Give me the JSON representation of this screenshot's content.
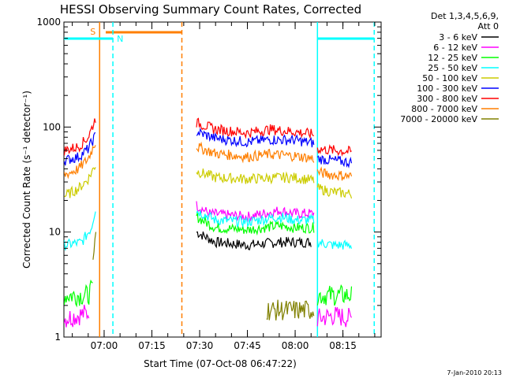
{
  "chart_data": {
    "type": "line",
    "title": "HESSI Observing Summary Count Rates, Corrected",
    "ylabel": "Corrected Count Rate (s⁻¹ detector⁻¹)",
    "xlabel": "Start Time (07-Oct-08 06:47:22)",
    "yscale": "log",
    "ylim": [
      1,
      1000
    ],
    "xlim": [
      "06:47:22",
      "08:27:00"
    ],
    "yticks": [
      "1",
      "10",
      "100",
      "1000"
    ],
    "xticks": [
      {
        "label": "07:00",
        "t": "07:00"
      },
      {
        "label": "07:15",
        "t": "07:15"
      },
      {
        "label": "07:30",
        "t": "07:30"
      },
      {
        "label": "07:45",
        "t": "07:45"
      },
      {
        "label": "08:00",
        "t": "08:00"
      },
      {
        "label": "08:15",
        "t": "08:15"
      }
    ],
    "legend_header": [
      "Det 1,3,4,5,6,9,",
      "Att 0"
    ],
    "legend_placement": "right",
    "series": [
      {
        "name": "3 - 6 keV",
        "color": "#000000",
        "segments": [
          {
            "t": [
              "07:29",
              "07:35",
              "07:45",
              "07:55",
              "08:05"
            ],
            "y": [
              10,
              8,
              7.5,
              8,
              8
            ]
          }
        ]
      },
      {
        "name": "6 - 12 keV",
        "color": "#ff00ff",
        "segments": [
          {
            "t": [
              "06:47:30",
              "06:55",
              "06:55:30"
            ],
            "y": [
              1.5,
              1.7,
              2
            ]
          },
          {
            "t": [
              "07:29",
              "07:33",
              "07:45",
              "07:55",
              "08:00",
              "08:06"
            ],
            "y": [
              18,
              15,
              14,
              16,
              15,
              15
            ]
          },
          {
            "t": [
              "08:07",
              "08:12",
              "08:18"
            ],
            "y": [
              1.5,
              1.6,
              1.5
            ]
          }
        ]
      },
      {
        "name": "12 - 25 keV",
        "color": "#00ff00",
        "segments": [
          {
            "t": [
              "06:47:30",
              "06:55",
              "06:56:40"
            ],
            "y": [
              2.5,
              2.5,
              3
            ]
          },
          {
            "t": [
              "07:29",
              "07:35",
              "07:45",
              "07:55",
              "08:00",
              "08:06"
            ],
            "y": [
              14,
              11,
              10.5,
              11.5,
              11,
              11
            ]
          },
          {
            "t": [
              "08:07",
              "08:12",
              "08:18"
            ],
            "y": [
              2.5,
              2.5,
              2.5
            ]
          }
        ]
      },
      {
        "name": "25 - 50 keV",
        "color": "#00ffff",
        "segments": [
          {
            "t": [
              "06:47:30",
              "06:53",
              "06:56",
              "06:57:30"
            ],
            "y": [
              7.5,
              8,
              11,
              18
            ]
          },
          {
            "t": [
              "07:29",
              "07:35",
              "07:45",
              "07:55",
              "08:00",
              "08:06"
            ],
            "y": [
              16,
              13,
              12.5,
              14,
              13,
              13
            ]
          },
          {
            "t": [
              "08:07",
              "08:12",
              "08:18"
            ],
            "y": [
              8,
              7.5,
              7.5
            ]
          }
        ]
      },
      {
        "name": "50 - 100 keV",
        "color": "#cccc00",
        "segments": [
          {
            "t": [
              "06:47:30",
              "06:52",
              "06:55",
              "06:57:30"
            ],
            "y": [
              22,
              26,
              32,
              45
            ]
          },
          {
            "t": [
              "07:29",
              "07:35",
              "07:45",
              "07:55",
              "08:00",
              "08:06"
            ],
            "y": [
              38,
              33,
              32,
              33,
              33,
              31
            ]
          },
          {
            "t": [
              "08:07",
              "08:12",
              "08:18"
            ],
            "y": [
              26,
              24,
              23
            ]
          }
        ]
      },
      {
        "name": "100 - 300 keV",
        "color": "#0000ff",
        "segments": [
          {
            "t": [
              "06:47:30",
              "06:52",
              "06:55",
              "06:57:30"
            ],
            "y": [
              48,
              52,
              62,
              85
            ]
          },
          {
            "t": [
              "07:29",
              "07:35",
              "07:45",
              "07:52",
              "08:00",
              "08:06"
            ],
            "y": [
              90,
              78,
              72,
              76,
              75,
              70
            ]
          },
          {
            "t": [
              "08:07",
              "08:12",
              "08:18"
            ],
            "y": [
              50,
              48,
              46
            ]
          }
        ]
      },
      {
        "name": "300 - 800 keV",
        "color": "#ff0000",
        "segments": [
          {
            "t": [
              "06:47:30",
              "06:52",
              "06:55",
              "06:57:30"
            ],
            "y": [
              60,
              65,
              80,
              125
            ]
          },
          {
            "t": [
              "07:29",
              "07:35",
              "07:45",
              "07:52",
              "08:00",
              "08:06"
            ],
            "y": [
              110,
              95,
              88,
              95,
              90,
              85
            ]
          },
          {
            "t": [
              "08:07",
              "08:12",
              "08:18"
            ],
            "y": [
              62,
              60,
              58
            ]
          }
        ]
      },
      {
        "name": "800 - 7000 keV",
        "color": "#ff7f00",
        "segments": [
          {
            "t": [
              "06:47:30",
              "06:52",
              "06:55",
              "06:57:30"
            ],
            "y": [
              35,
              40,
              50,
              75
            ]
          },
          {
            "t": [
              "07:29",
              "07:35",
              "07:45",
              "07:52",
              "08:00",
              "08:06"
            ],
            "y": [
              65,
              56,
              52,
              55,
              53,
              50
            ]
          },
          {
            "t": [
              "08:07",
              "08:12",
              "08:18"
            ],
            "y": [
              37,
              35,
              34
            ]
          }
        ]
      },
      {
        "name": "7000 - 20000 keV",
        "color": "#808000",
        "segments": [
          {
            "t": [
              "06:56:30",
              "06:57:10",
              "06:57:40"
            ],
            "y": [
              5,
              9,
              14
            ]
          },
          {
            "t": [
              "07:51",
              "07:56",
              "08:02",
              "08:06"
            ],
            "y": [
              1.8,
              1.8,
              1.8,
              1.8
            ]
          }
        ]
      }
    ],
    "flags": {
      "S": {
        "label": "S",
        "color": "#ff7f00",
        "start": "06:58:35",
        "end": "07:24:25"
      },
      "N": {
        "label": "N",
        "color": "#00ffff",
        "intervals": [
          [
            "06:47:22",
            "07:02:45"
          ],
          [
            "08:07:00",
            "08:24:50"
          ]
        ]
      }
    }
  },
  "footer_stamp": "7-Jan-2010 20:13"
}
